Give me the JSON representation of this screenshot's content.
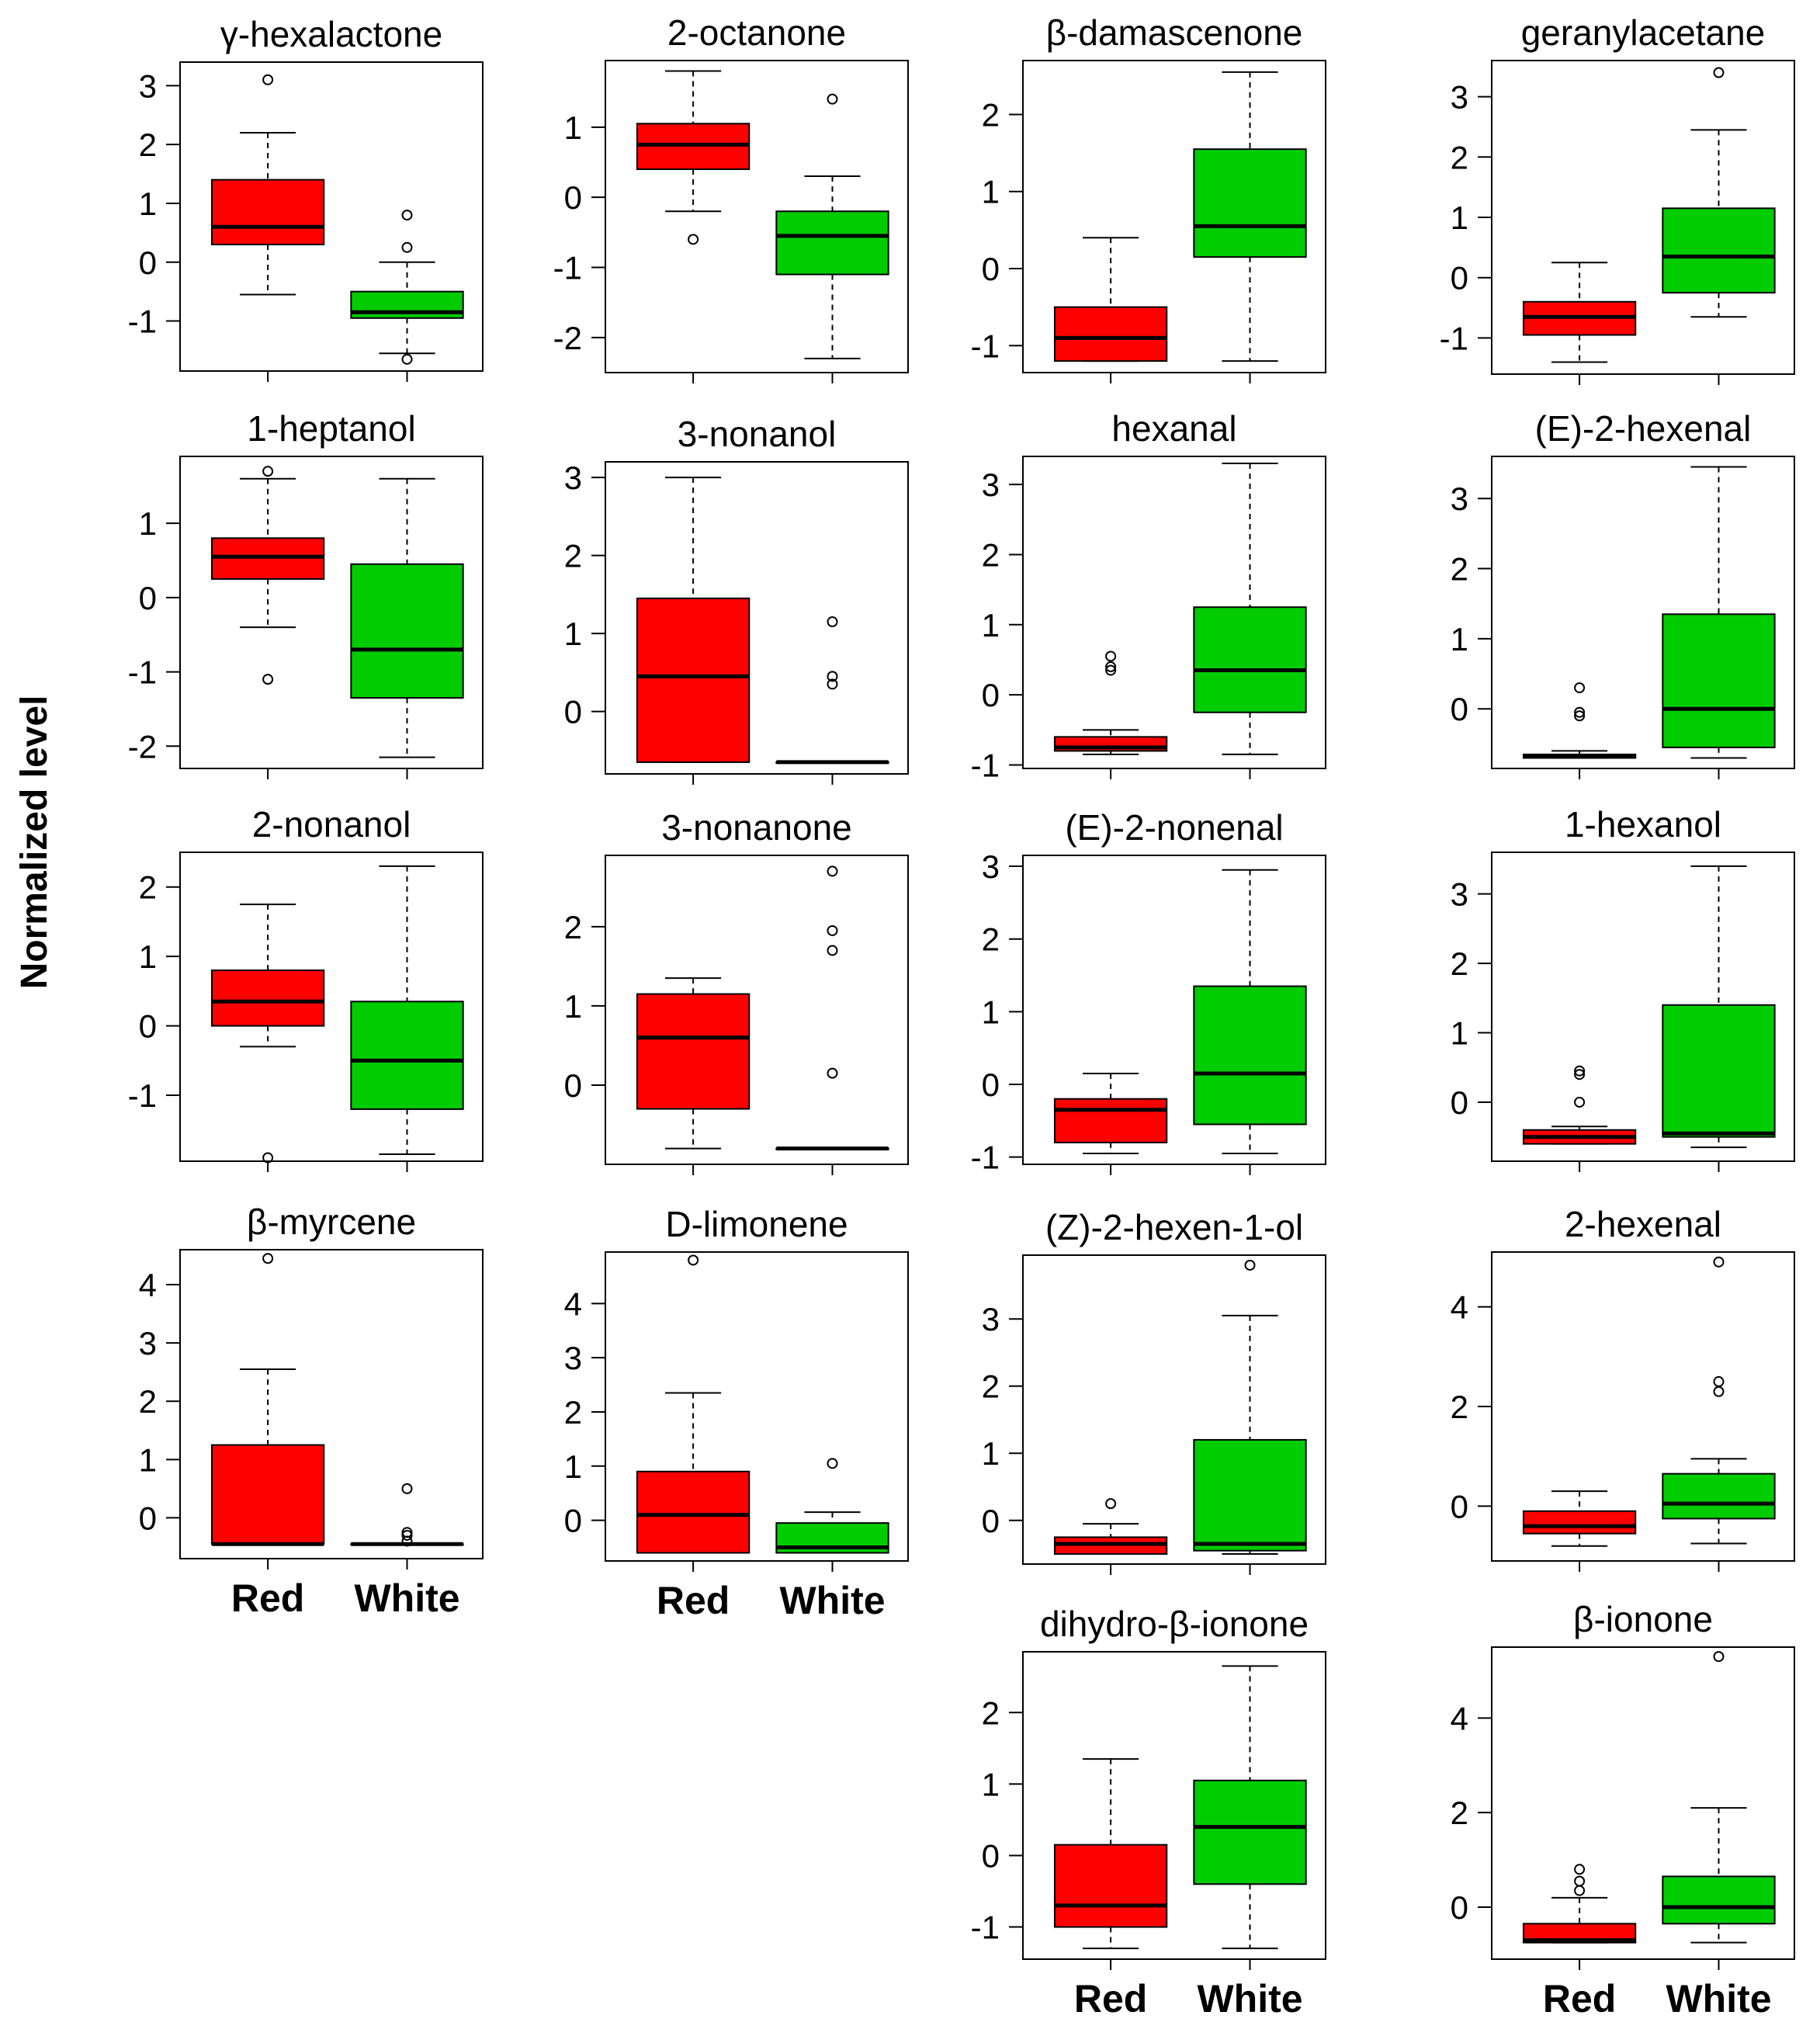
{
  "chart_data": {
    "type": "boxplot",
    "ylabel": "Normalized level",
    "categories": [
      "Red",
      "White"
    ],
    "colors": {
      "Red": "#ff0000",
      "White": "#00cc00"
    },
    "panels": [
      {
        "title": "γ-hexalactone",
        "ylim": [
          -1.85,
          3.4
        ],
        "ticks": [
          -1,
          0,
          1,
          2,
          3
        ],
        "boxes": [
          {
            "min": -0.55,
            "q1": 0.3,
            "median": 0.6,
            "q3": 1.4,
            "max": 2.2,
            "outliers": [
              3.1
            ]
          },
          {
            "min": -1.55,
            "q1": -0.95,
            "median": -0.85,
            "q3": -0.5,
            "max": 0.0,
            "outliers": [
              0.25,
              0.8,
              -1.65
            ]
          }
        ]
      },
      {
        "title": "2-octanone",
        "ylim": [
          -2.5,
          1.95
        ],
        "ticks": [
          -2,
          -1,
          0,
          1
        ],
        "boxes": [
          {
            "min": -0.2,
            "q1": 0.4,
            "median": 0.75,
            "q3": 1.05,
            "max": 1.8,
            "outliers": [
              -0.6
            ]
          },
          {
            "min": -2.3,
            "q1": -1.1,
            "median": -0.55,
            "q3": -0.2,
            "max": 0.3,
            "outliers": [
              1.4
            ]
          }
        ]
      },
      {
        "title": "β-damascenone",
        "ylim": [
          -1.35,
          2.7
        ],
        "ticks": [
          -1,
          0,
          1,
          2
        ],
        "boxes": [
          {
            "min": -1.2,
            "q1": -1.2,
            "median": -0.9,
            "q3": -0.5,
            "max": 0.4,
            "outliers": []
          },
          {
            "min": -1.2,
            "q1": 0.15,
            "median": 0.55,
            "q3": 1.55,
            "max": 2.55,
            "outliers": []
          }
        ]
      },
      {
        "title": "geranylacetane",
        "ylim": [
          -1.6,
          3.6
        ],
        "ticks": [
          -1,
          0,
          1,
          2,
          3
        ],
        "boxes": [
          {
            "min": -1.4,
            "q1": -0.95,
            "median": -0.65,
            "q3": -0.4,
            "max": 0.25,
            "outliers": []
          },
          {
            "min": -0.65,
            "q1": -0.25,
            "median": 0.35,
            "q3": 1.15,
            "max": 2.45,
            "outliers": [
              3.4
            ]
          }
        ]
      },
      {
        "title": "1-heptanol",
        "ylim": [
          -2.3,
          1.9
        ],
        "ticks": [
          -2,
          -1,
          0,
          1
        ],
        "boxes": [
          {
            "min": -0.4,
            "q1": 0.25,
            "median": 0.55,
            "q3": 0.8,
            "max": 1.6,
            "outliers": [
              1.7,
              -1.1
            ]
          },
          {
            "min": -2.15,
            "q1": -1.35,
            "median": -0.7,
            "q3": 0.45,
            "max": 1.6,
            "outliers": []
          }
        ]
      },
      {
        "title": "3-nonanol",
        "ylim": [
          -0.8,
          3.2
        ],
        "ticks": [
          0,
          1,
          2,
          3
        ],
        "boxes": [
          {
            "min": -0.65,
            "q1": -0.65,
            "median": 0.45,
            "q3": 1.45,
            "max": 3.0,
            "outliers": []
          },
          {
            "min": -0.65,
            "q1": -0.65,
            "median": -0.65,
            "q3": -0.65,
            "max": -0.65,
            "outliers": [
              1.15,
              0.45,
              0.35
            ]
          }
        ]
      },
      {
        "title": "hexanal",
        "ylim": [
          -1.05,
          3.4
        ],
        "ticks": [
          -1,
          0,
          1,
          2,
          3
        ],
        "boxes": [
          {
            "min": -0.85,
            "q1": -0.8,
            "median": -0.75,
            "q3": -0.6,
            "max": -0.5,
            "outliers": [
              0.35,
              0.4,
              0.55
            ]
          },
          {
            "min": -0.85,
            "q1": -0.25,
            "median": 0.35,
            "q3": 1.25,
            "max": 3.3,
            "outliers": []
          }
        ]
      },
      {
        "title": "(E)-2-hexenal",
        "ylim": [
          -0.85,
          3.6
        ],
        "ticks": [
          0,
          1,
          2,
          3
        ],
        "boxes": [
          {
            "min": -0.7,
            "q1": -0.7,
            "median": -0.68,
            "q3": -0.65,
            "max": -0.6,
            "outliers": [
              0.3,
              -0.05,
              -0.1
            ]
          },
          {
            "min": -0.7,
            "q1": -0.55,
            "median": 0.0,
            "q3": 1.35,
            "max": 3.45,
            "outliers": []
          }
        ]
      },
      {
        "title": "2-nonanol",
        "ylim": [
          -1.95,
          2.5
        ],
        "ticks": [
          -1,
          0,
          1,
          2
        ],
        "boxes": [
          {
            "min": -0.3,
            "q1": 0.0,
            "median": 0.35,
            "q3": 0.8,
            "max": 1.75,
            "outliers": [
              -1.9
            ]
          },
          {
            "min": -1.85,
            "q1": -1.2,
            "median": -0.5,
            "q3": 0.35,
            "max": 2.3,
            "outliers": []
          }
        ]
      },
      {
        "title": "3-nonanone",
        "ylim": [
          -1.0,
          2.9
        ],
        "ticks": [
          0,
          1,
          2
        ],
        "boxes": [
          {
            "min": -0.8,
            "q1": -0.3,
            "median": 0.6,
            "q3": 1.15,
            "max": 1.35,
            "outliers": []
          },
          {
            "min": -0.8,
            "q1": -0.8,
            "median": -0.8,
            "q3": -0.8,
            "max": -0.8,
            "outliers": [
              2.7,
              1.95,
              1.7,
              0.15
            ]
          }
        ]
      },
      {
        "title": "(E)-2-nonenal",
        "ylim": [
          -1.1,
          3.15
        ],
        "ticks": [
          -1,
          0,
          1,
          2,
          3
        ],
        "boxes": [
          {
            "min": -0.95,
            "q1": -0.8,
            "median": -0.35,
            "q3": -0.2,
            "max": 0.15,
            "outliers": []
          },
          {
            "min": -0.95,
            "q1": -0.55,
            "median": 0.15,
            "q3": 1.35,
            "max": 2.95,
            "outliers": []
          }
        ]
      },
      {
        "title": "1-hexanol",
        "ylim": [
          -0.85,
          3.6
        ],
        "ticks": [
          0,
          1,
          2,
          3
        ],
        "boxes": [
          {
            "min": -0.6,
            "q1": -0.6,
            "median": -0.5,
            "q3": -0.4,
            "max": -0.35,
            "outliers": [
              0.4,
              0.45,
              0.0
            ]
          },
          {
            "min": -0.65,
            "q1": -0.5,
            "median": -0.45,
            "q3": 1.4,
            "max": 3.4,
            "outliers": []
          }
        ]
      },
      {
        "title": "β-myrcene",
        "ylim": [
          -0.7,
          4.6
        ],
        "ticks": [
          0,
          1,
          2,
          3,
          4
        ],
        "boxes": [
          {
            "min": -0.45,
            "q1": -0.45,
            "median": -0.45,
            "q3": 1.25,
            "max": 2.55,
            "outliers": [
              4.45
            ]
          },
          {
            "min": -0.45,
            "q1": -0.45,
            "median": -0.45,
            "q3": -0.45,
            "max": -0.45,
            "outliers": [
              0.5,
              -0.25,
              -0.3,
              -0.4
            ]
          }
        ]
      },
      {
        "title": "D-limonene",
        "ylim": [
          -0.75,
          4.95
        ],
        "ticks": [
          0,
          1,
          2,
          3,
          4
        ],
        "boxes": [
          {
            "min": -0.6,
            "q1": -0.6,
            "median": 0.1,
            "q3": 0.9,
            "max": 2.35,
            "outliers": [
              4.8
            ]
          },
          {
            "min": -0.6,
            "q1": -0.6,
            "median": -0.5,
            "q3": -0.05,
            "max": 0.15,
            "outliers": [
              1.05
            ]
          }
        ]
      },
      {
        "title": "(Z)-2-hexen-1-ol",
        "ylim": [
          -0.65,
          3.95
        ],
        "ticks": [
          0,
          1,
          2,
          3
        ],
        "boxes": [
          {
            "min": -0.5,
            "q1": -0.5,
            "median": -0.35,
            "q3": -0.25,
            "max": -0.05,
            "outliers": [
              0.25
            ]
          },
          {
            "min": -0.5,
            "q1": -0.45,
            "median": -0.35,
            "q3": 1.2,
            "max": 3.05,
            "outliers": [
              3.8
            ]
          }
        ]
      },
      {
        "title": "2-hexenal",
        "ylim": [
          -1.1,
          5.1
        ],
        "ticks": [
          0,
          2,
          4
        ],
        "boxes": [
          {
            "min": -0.8,
            "q1": -0.55,
            "median": -0.4,
            "q3": -0.1,
            "max": 0.3,
            "outliers": []
          },
          {
            "min": -0.75,
            "q1": -0.25,
            "median": 0.05,
            "q3": 0.65,
            "max": 0.95,
            "outliers": [
              4.9,
              2.5,
              2.3
            ]
          }
        ]
      },
      {
        "title": "dihydro-β-ionone",
        "ylim": [
          -1.45,
          2.85
        ],
        "ticks": [
          -1,
          0,
          1,
          2
        ],
        "boxes": [
          {
            "min": -1.3,
            "q1": -1.0,
            "median": -0.7,
            "q3": 0.15,
            "max": 1.35,
            "outliers": []
          },
          {
            "min": -1.3,
            "q1": -0.4,
            "median": 0.4,
            "q3": 1.05,
            "max": 2.65,
            "outliers": []
          }
        ]
      },
      {
        "title": "β-ionone",
        "ylim": [
          -1.1,
          5.5
        ],
        "ticks": [
          0,
          2,
          4
        ],
        "boxes": [
          {
            "min": -0.75,
            "q1": -0.75,
            "median": -0.7,
            "q3": -0.35,
            "max": 0.2,
            "outliers": [
              0.8,
              0.55,
              0.35
            ]
          },
          {
            "min": -0.75,
            "q1": -0.35,
            "median": 0.0,
            "q3": 0.65,
            "max": 2.1,
            "outliers": [
              5.3
            ]
          }
        ]
      }
    ]
  }
}
